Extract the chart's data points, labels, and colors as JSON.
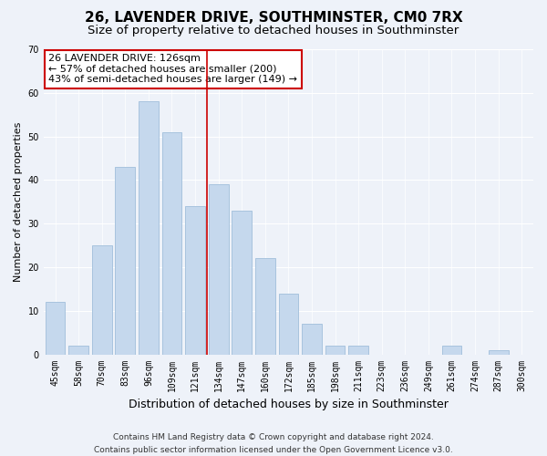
{
  "title": "26, LAVENDER DRIVE, SOUTHMINSTER, CM0 7RX",
  "subtitle": "Size of property relative to detached houses in Southminster",
  "xlabel": "Distribution of detached houses by size in Southminster",
  "ylabel": "Number of detached properties",
  "categories": [
    "45sqm",
    "58sqm",
    "70sqm",
    "83sqm",
    "96sqm",
    "109sqm",
    "121sqm",
    "134sqm",
    "147sqm",
    "160sqm",
    "172sqm",
    "185sqm",
    "198sqm",
    "211sqm",
    "223sqm",
    "236sqm",
    "249sqm",
    "261sqm",
    "274sqm",
    "287sqm",
    "300sqm"
  ],
  "values": [
    12,
    2,
    25,
    43,
    58,
    51,
    34,
    39,
    33,
    22,
    14,
    7,
    2,
    2,
    0,
    0,
    0,
    2,
    0,
    1,
    0
  ],
  "bar_color": "#c5d8ed",
  "bar_edgecolor": "#a8c4de",
  "vline_x": 6.5,
  "vline_color": "#cc0000",
  "annotation_text": "26 LAVENDER DRIVE: 126sqm\n← 57% of detached houses are smaller (200)\n43% of semi-detached houses are larger (149) →",
  "annotation_box_color": "white",
  "annotation_box_edgecolor": "#cc0000",
  "ylim": [
    0,
    70
  ],
  "yticks": [
    0,
    10,
    20,
    30,
    40,
    50,
    60,
    70
  ],
  "footer_text": "Contains HM Land Registry data © Crown copyright and database right 2024.\nContains public sector information licensed under the Open Government Licence v3.0.",
  "background_color": "#eef2f9",
  "title_fontsize": 11,
  "subtitle_fontsize": 9.5,
  "xlabel_fontsize": 9,
  "ylabel_fontsize": 8,
  "tick_fontsize": 7,
  "annotation_fontsize": 8,
  "footer_fontsize": 6.5
}
